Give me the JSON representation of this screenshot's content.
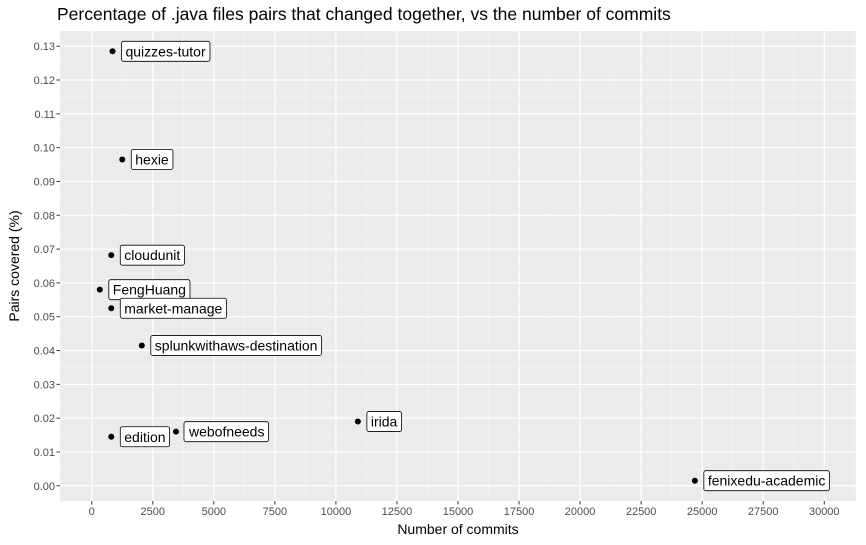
{
  "chart_data": {
    "type": "scatter",
    "title": "Percentage of .java files pairs that changed together, vs the number of commits",
    "xlabel": "Number of commits",
    "ylabel": "Pairs covered (%)",
    "xlim": [
      -1300,
      31300
    ],
    "ylim": [
      -0.0045,
      0.1345
    ],
    "x_ticks": [
      0,
      2500,
      5000,
      7500,
      10000,
      12500,
      15000,
      17500,
      20000,
      22500,
      25000,
      27500,
      30000
    ],
    "x_tick_labels": [
      "0",
      "2500",
      "5000",
      "7500",
      "10000",
      "12500",
      "15000",
      "17500",
      "20000",
      "22500",
      "25000",
      "27500",
      "30000"
    ],
    "y_ticks": [
      0,
      0.01,
      0.02,
      0.03,
      0.04,
      0.05,
      0.06,
      0.07,
      0.08,
      0.09,
      0.1,
      0.11,
      0.12,
      0.13
    ],
    "y_tick_labels": [
      "0.00",
      "0.01",
      "0.02",
      "0.03",
      "0.04",
      "0.05",
      "0.06",
      "0.07",
      "0.08",
      "0.09",
      "0.10",
      "0.11",
      "0.12",
      "0.13"
    ],
    "grid": true,
    "points": [
      {
        "label": "quizzes-tutor",
        "x": 850,
        "y": 0.1285
      },
      {
        "label": "hexie",
        "x": 1250,
        "y": 0.0965
      },
      {
        "label": "cloudunit",
        "x": 800,
        "y": 0.0682
      },
      {
        "label": "FengHuang",
        "x": 330,
        "y": 0.058
      },
      {
        "label": "market-manage",
        "x": 800,
        "y": 0.0525
      },
      {
        "label": "splunkwithaws-destination",
        "x": 2050,
        "y": 0.0415
      },
      {
        "label": "irida",
        "x": 10900,
        "y": 0.019
      },
      {
        "label": "webofneeds",
        "x": 3450,
        "y": 0.016
      },
      {
        "label": "edition",
        "x": 800,
        "y": 0.0145
      },
      {
        "label": "fenixedu-academic",
        "x": 24700,
        "y": 0.0015
      }
    ]
  }
}
